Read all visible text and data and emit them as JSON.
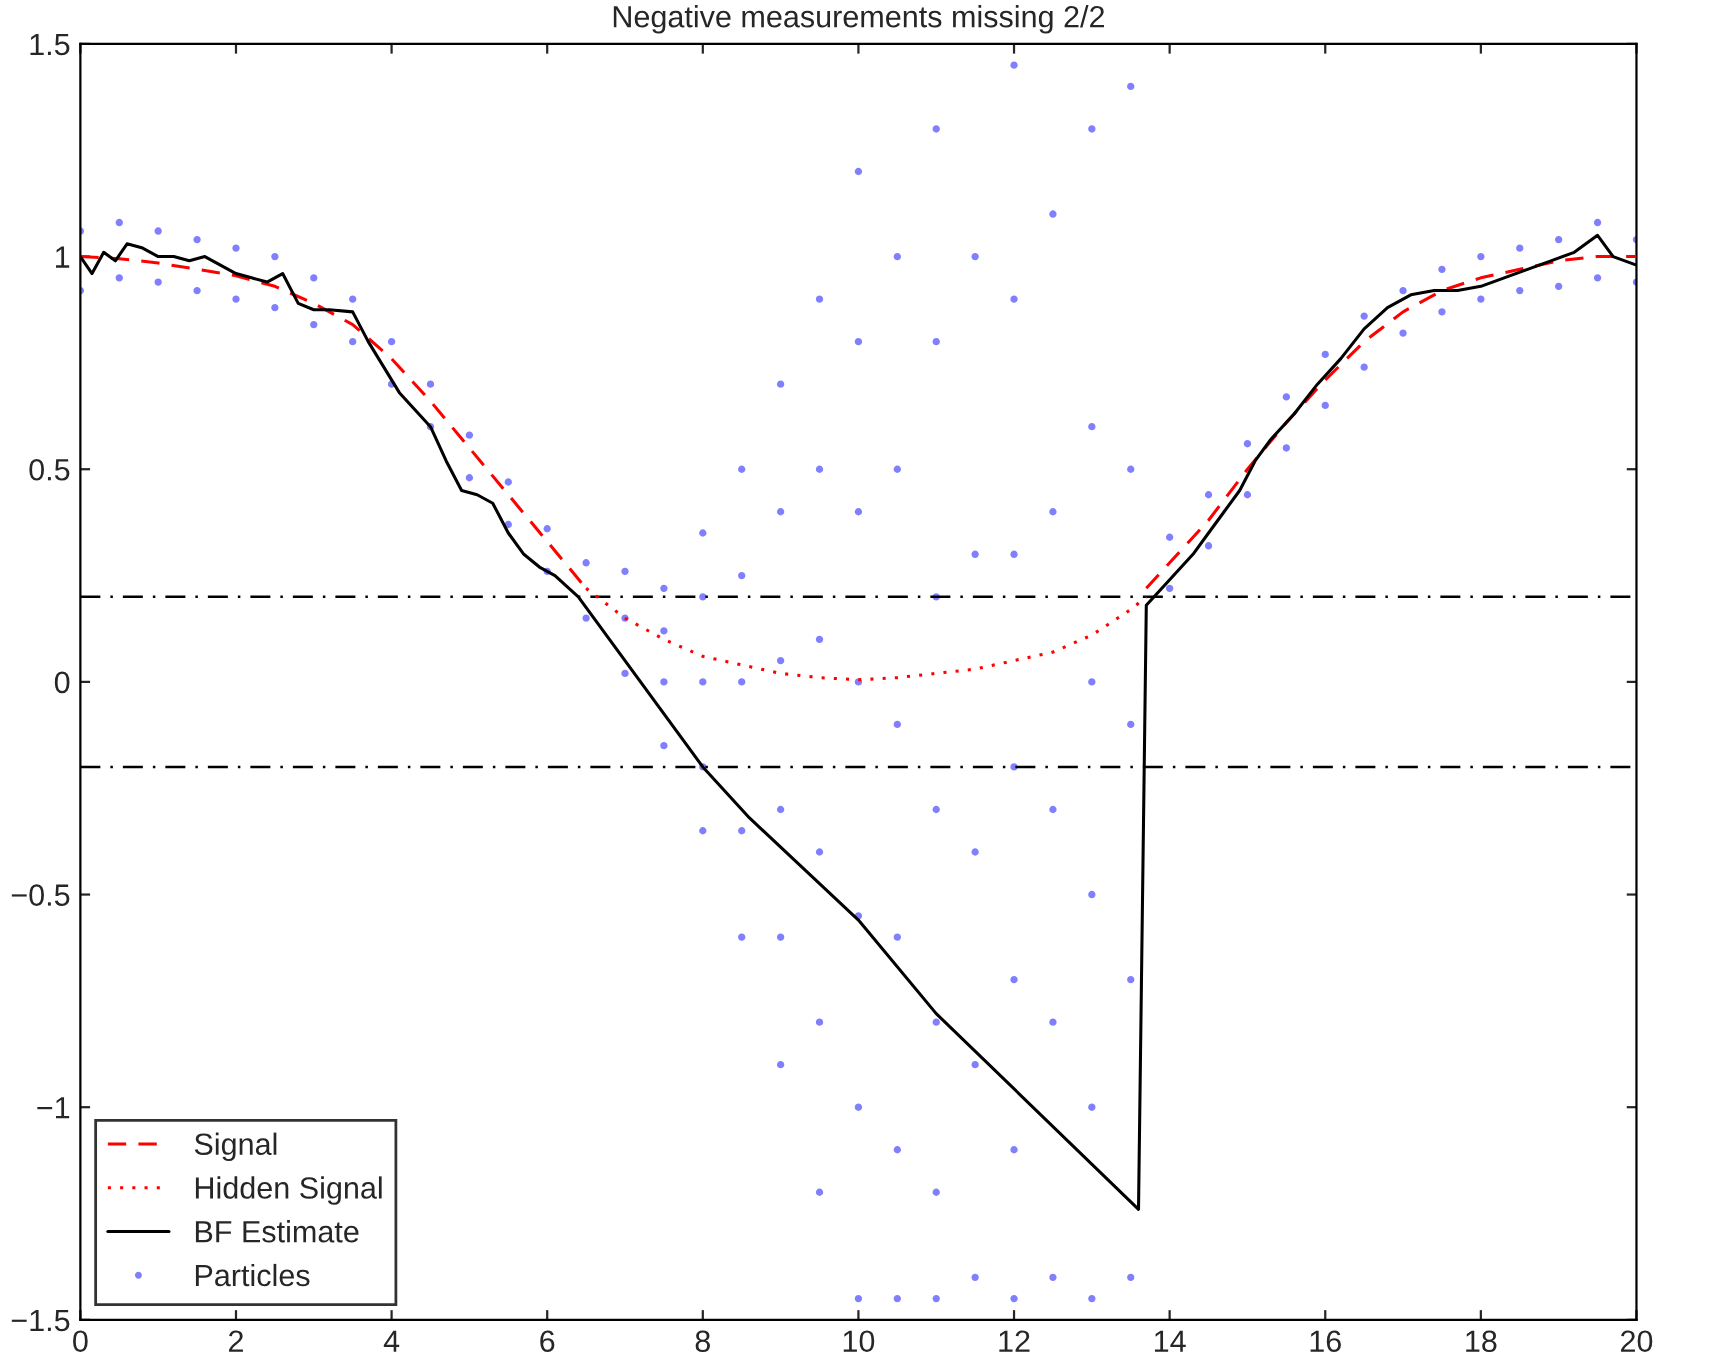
{
  "chart_data": {
    "type": "line",
    "title": "Negative measurements missing 2/2",
    "xlim": [
      0,
      20
    ],
    "xticks": [
      0,
      2,
      4,
      6,
      8,
      10,
      12,
      14,
      16,
      18,
      20
    ],
    "ylim": [
      -1.5,
      1.5
    ],
    "yticks": [
      {
        "value": -1.5,
        "label": "−1.5"
      },
      {
        "value": -1,
        "label": "−1"
      },
      {
        "value": -0.5,
        "label": "−0.5"
      },
      0,
      0.5,
      1,
      1.5
    ],
    "grid": false,
    "legend": "bottom left",
    "ref_lines": [
      {
        "axis": "y",
        "value": 0.2,
        "color": "#000000",
        "line_style": "dashdot"
      },
      {
        "axis": "y",
        "value": -0.2,
        "color": "#000000",
        "line_style": "dashdot"
      }
    ],
    "series": [
      {
        "name": "Signal",
        "color": "#ff0000",
        "line_style": "dashed",
        "x": [
          0,
          0.5,
          1,
          1.5,
          2,
          2.5,
          3,
          3.5,
          4,
          4.5,
          5,
          5.5,
          6,
          6.5,
          10,
          13.7,
          14,
          14.5,
          15,
          15.5,
          16,
          16.5,
          17,
          17.5,
          18,
          18.5,
          19,
          19.5,
          20
        ],
        "values": [
          1.0,
          0.995,
          0.985,
          0.97,
          0.955,
          0.93,
          0.89,
          0.84,
          0.76,
          0.66,
          0.55,
          0.44,
          0.33,
          0.22,
          null,
          0.22,
          0.28,
          0.38,
          0.5,
          0.61,
          0.71,
          0.8,
          0.87,
          0.92,
          0.95,
          0.97,
          0.99,
          1.0,
          1.0
        ]
      },
      {
        "name": "Hidden Signal",
        "color": "#ff0000",
        "line_style": "dotted",
        "x": [
          6.5,
          7,
          7.5,
          8,
          8.5,
          9,
          9.5,
          10,
          10.5,
          11,
          11.5,
          12,
          12.5,
          13,
          13.5,
          13.7
        ],
        "values": [
          0.22,
          0.15,
          0.1,
          0.06,
          0.04,
          0.02,
          0.01,
          0.005,
          0.01,
          0.02,
          0.03,
          0.05,
          0.07,
          0.11,
          0.17,
          0.2
        ]
      },
      {
        "name": "BF Estimate",
        "color": "#000000",
        "line_style": "solid",
        "x": [
          0,
          0.15,
          0.3,
          0.45,
          0.6,
          0.8,
          1.0,
          1.2,
          1.4,
          1.6,
          1.8,
          2.0,
          2.2,
          2.4,
          2.6,
          2.8,
          3.0,
          3.2,
          3.5,
          3.7,
          3.9,
          4.1,
          4.3,
          4.5,
          4.7,
          4.9,
          5.1,
          5.3,
          5.5,
          5.7,
          5.9,
          6.1,
          6.4,
          8,
          8.6,
          10,
          11,
          13.6,
          13.7,
          13.9,
          14.1,
          14.3,
          14.5,
          14.7,
          14.9,
          15.1,
          15.3,
          15.6,
          15.9,
          16.2,
          16.5,
          16.8,
          17.1,
          17.4,
          17.7,
          18.0,
          18.3,
          18.6,
          18.9,
          19.2,
          19.5,
          19.7,
          20
        ],
        "values": [
          1.0,
          0.96,
          1.01,
          0.99,
          1.03,
          1.02,
          1.0,
          1.0,
          0.99,
          1.0,
          0.98,
          0.96,
          0.95,
          0.94,
          0.96,
          0.89,
          0.875,
          0.875,
          0.87,
          0.8,
          0.74,
          0.68,
          0.64,
          0.6,
          0.52,
          0.45,
          0.44,
          0.42,
          0.35,
          0.3,
          0.27,
          0.25,
          0.2,
          -0.2,
          -0.32,
          -0.56,
          -0.78,
          -1.24,
          0.18,
          0.22,
          0.26,
          0.3,
          0.35,
          0.4,
          0.45,
          0.52,
          0.57,
          0.63,
          0.7,
          0.76,
          0.83,
          0.88,
          0.91,
          0.92,
          0.92,
          0.93,
          0.95,
          0.97,
          0.99,
          1.01,
          1.05,
          1.0,
          0.98
        ]
      },
      {
        "name": "Particles",
        "type": "scatter",
        "color": "#8080ff",
        "marker": "circle",
        "x": [
          0,
          0,
          0.5,
          0.5,
          1,
          1,
          1.5,
          1.5,
          2,
          2,
          2.5,
          2.5,
          3,
          3,
          3.5,
          3.5,
          4,
          4,
          4.5,
          4.5,
          5,
          5,
          5.5,
          5.5,
          6,
          6,
          6.5,
          6.5,
          7,
          7,
          7,
          7.5,
          7.5,
          7.5,
          7.5,
          8,
          8,
          8,
          8,
          8,
          8.5,
          8.5,
          8.5,
          8.5,
          8.5,
          9,
          9,
          9,
          9,
          9,
          9,
          9.5,
          9.5,
          9.5,
          9.5,
          9.5,
          9.5,
          10,
          10,
          10,
          10,
          10,
          10,
          10,
          10.5,
          10.5,
          10.5,
          10.5,
          10.5,
          10.5,
          11,
          11,
          11,
          11,
          11,
          11,
          11,
          11.5,
          11.5,
          11.5,
          11.5,
          11.5,
          12,
          12,
          12,
          12,
          12,
          12,
          12,
          12.5,
          12.5,
          12.5,
          12.5,
          12.5,
          13,
          13,
          13,
          13,
          13,
          13,
          13.5,
          13.5,
          13.5,
          13.5,
          13.5,
          14,
          14,
          14.5,
          14.5,
          15,
          15,
          15.5,
          15.5,
          16,
          16,
          16.5,
          16.5,
          17,
          17,
          17.5,
          17.5,
          18,
          18,
          18.5,
          18.5,
          19,
          19,
          19.5,
          19.5,
          20,
          20
        ],
        "values": [
          0.92,
          1.06,
          0.95,
          1.08,
          0.94,
          1.06,
          0.92,
          1.04,
          0.9,
          1.02,
          0.88,
          1.0,
          0.84,
          0.95,
          0.8,
          0.9,
          0.7,
          0.8,
          0.6,
          0.7,
          0.48,
          0.58,
          0.37,
          0.47,
          0.26,
          0.36,
          0.15,
          0.28,
          0.02,
          0.15,
          0.26,
          -0.15,
          0.0,
          0.12,
          0.22,
          -0.35,
          -0.2,
          0.0,
          0.2,
          0.35,
          -0.6,
          -0.35,
          0.0,
          0.25,
          0.5,
          -0.9,
          -0.6,
          -0.3,
          0.05,
          0.4,
          0.7,
          -1.2,
          -0.8,
          -0.4,
          0.1,
          0.5,
          0.9,
          -1.45,
          -1.0,
          -0.55,
          0.0,
          0.4,
          0.8,
          1.2,
          -1.45,
          -1.1,
          -0.6,
          -0.1,
          0.5,
          1.0,
          -1.45,
          -1.2,
          -0.8,
          -0.3,
          0.2,
          0.8,
          1.3,
          -1.4,
          -0.9,
          -0.4,
          0.3,
          1.0,
          -1.45,
          -1.1,
          -0.7,
          -0.2,
          0.3,
          0.9,
          1.45,
          -1.4,
          -0.8,
          -0.3,
          0.4,
          1.1,
          -1.45,
          -1.0,
          -0.5,
          0.0,
          0.6,
          1.3,
          -1.4,
          -0.7,
          -0.1,
          0.5,
          1.4,
          0.22,
          0.34,
          0.32,
          0.44,
          0.44,
          0.56,
          0.55,
          0.67,
          0.65,
          0.77,
          0.74,
          0.86,
          0.82,
          0.92,
          0.87,
          0.97,
          0.9,
          1.0,
          0.92,
          1.02,
          0.93,
          1.04,
          0.95,
          1.08,
          0.94,
          1.04
        ]
      }
    ]
  }
}
